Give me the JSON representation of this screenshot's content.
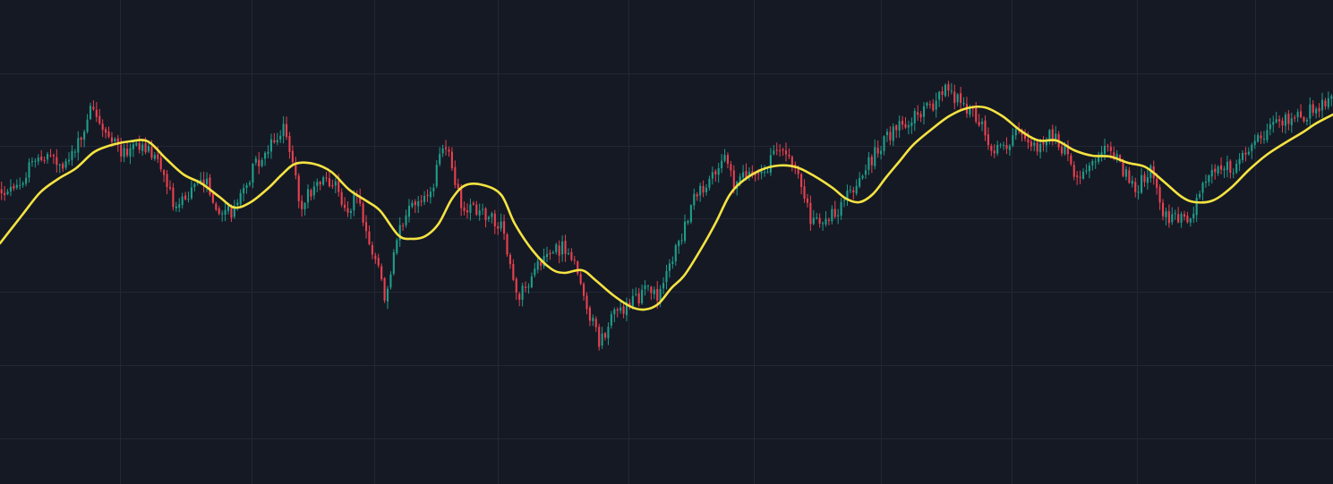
{
  "colors": {
    "background": "#151924",
    "grid": "#232733",
    "candle_up": "#1f9c8a",
    "candle_down": "#e8414f",
    "moving_average": "#f5e342"
  },
  "chart_data": {
    "type": "candlestick",
    "title": "",
    "xlabel": "",
    "ylabel": "",
    "grid": true,
    "legend": "none",
    "candle_count": 435,
    "ylim": [
      0,
      541
    ],
    "series": [
      {
        "kind": "candles",
        "anchors": [
          [
            0,
            213
          ],
          [
            15,
            215
          ],
          [
            30,
            190
          ],
          [
            50,
            172
          ],
          [
            70,
            185
          ],
          [
            95,
            150
          ],
          [
            100,
            120
          ],
          [
            120,
            150
          ],
          [
            135,
            170
          ],
          [
            160,
            160
          ],
          [
            175,
            175
          ],
          [
            195,
            230
          ],
          [
            215,
            212
          ],
          [
            230,
            200
          ],
          [
            245,
            240
          ],
          [
            260,
            235
          ],
          [
            285,
            185
          ],
          [
            310,
            150
          ],
          [
            318,
            140
          ],
          [
            325,
            170
          ],
          [
            335,
            232
          ],
          [
            355,
            200
          ],
          [
            375,
            208
          ],
          [
            385,
            240
          ],
          [
            400,
            215
          ],
          [
            415,
            285
          ],
          [
            425,
            300
          ],
          [
            430,
            340
          ],
          [
            445,
            260
          ],
          [
            460,
            225
          ],
          [
            480,
            222
          ],
          [
            495,
            162
          ],
          [
            505,
            185
          ],
          [
            515,
            230
          ],
          [
            535,
            238
          ],
          [
            560,
            250
          ],
          [
            570,
            300
          ],
          [
            580,
            330
          ],
          [
            600,
            300
          ],
          [
            620,
            280
          ],
          [
            630,
            275
          ],
          [
            640,
            290
          ],
          [
            660,
            355
          ],
          [
            670,
            385
          ],
          [
            685,
            350
          ],
          [
            700,
            345
          ],
          [
            710,
            335
          ],
          [
            725,
            320
          ],
          [
            735,
            330
          ],
          [
            745,
            300
          ],
          [
            760,
            270
          ],
          [
            775,
            225
          ],
          [
            795,
            195
          ],
          [
            810,
            168
          ],
          [
            820,
            210
          ],
          [
            835,
            195
          ],
          [
            855,
            190
          ],
          [
            875,
            160
          ],
          [
            885,
            190
          ],
          [
            895,
            205
          ],
          [
            905,
            245
          ],
          [
            915,
            250
          ],
          [
            935,
            235
          ],
          [
            945,
            220
          ],
          [
            960,
            200
          ],
          [
            985,
            160
          ],
          [
            1000,
            145
          ],
          [
            1020,
            130
          ],
          [
            1040,
            120
          ],
          [
            1055,
            98
          ],
          [
            1075,
            115
          ],
          [
            1095,
            135
          ],
          [
            1110,
            170
          ],
          [
            1135,
            150
          ],
          [
            1160,
            165
          ],
          [
            1175,
            150
          ],
          [
            1195,
            175
          ],
          [
            1200,
            205
          ],
          [
            1215,
            180
          ],
          [
            1240,
            160
          ],
          [
            1250,
            185
          ],
          [
            1270,
            210
          ],
          [
            1285,
            190
          ],
          [
            1300,
            240
          ],
          [
            1315,
            245
          ],
          [
            1330,
            240
          ],
          [
            1345,
            200
          ],
          [
            1360,
            182
          ],
          [
            1380,
            190
          ],
          [
            1400,
            160
          ],
          [
            1420,
            140
          ],
          [
            1435,
            135
          ],
          [
            1455,
            130
          ],
          [
            1470,
            118
          ],
          [
            1489,
            112
          ]
        ]
      },
      {
        "kind": "moving_average",
        "anchors": [
          [
            0,
            272
          ],
          [
            25,
            240
          ],
          [
            45,
            215
          ],
          [
            65,
            200
          ],
          [
            85,
            188
          ],
          [
            105,
            170
          ],
          [
            125,
            162
          ],
          [
            145,
            158
          ],
          [
            165,
            158
          ],
          [
            185,
            177
          ],
          [
            205,
            195
          ],
          [
            225,
            205
          ],
          [
            245,
            220
          ],
          [
            262,
            232
          ],
          [
            280,
            226
          ],
          [
            300,
            210
          ],
          [
            315,
            195
          ],
          [
            330,
            183
          ],
          [
            350,
            183
          ],
          [
            370,
            192
          ],
          [
            390,
            212
          ],
          [
            410,
            225
          ],
          [
            425,
            236
          ],
          [
            445,
            263
          ],
          [
            460,
            267
          ],
          [
            475,
            264
          ],
          [
            490,
            250
          ],
          [
            505,
            222
          ],
          [
            520,
            207
          ],
          [
            540,
            207
          ],
          [
            560,
            218
          ],
          [
            575,
            250
          ],
          [
            595,
            280
          ],
          [
            615,
            300
          ],
          [
            630,
            305
          ],
          [
            650,
            302
          ],
          [
            665,
            313
          ],
          [
            685,
            330
          ],
          [
            705,
            343
          ],
          [
            720,
            346
          ],
          [
            735,
            340
          ],
          [
            750,
            322
          ],
          [
            765,
            307
          ],
          [
            785,
            275
          ],
          [
            800,
            248
          ],
          [
            815,
            218
          ],
          [
            830,
            202
          ],
          [
            850,
            190
          ],
          [
            870,
            185
          ],
          [
            890,
            187
          ],
          [
            910,
            197
          ],
          [
            930,
            210
          ],
          [
            945,
            222
          ],
          [
            960,
            226
          ],
          [
            975,
            217
          ],
          [
            990,
            198
          ],
          [
            1005,
            180
          ],
          [
            1020,
            162
          ],
          [
            1040,
            145
          ],
          [
            1060,
            130
          ],
          [
            1080,
            121
          ],
          [
            1100,
            120
          ],
          [
            1120,
            130
          ],
          [
            1140,
            146
          ],
          [
            1160,
            157
          ],
          [
            1180,
            157
          ],
          [
            1200,
            168
          ],
          [
            1220,
            174
          ],
          [
            1240,
            175
          ],
          [
            1260,
            182
          ],
          [
            1280,
            187
          ],
          [
            1300,
            203
          ],
          [
            1320,
            220
          ],
          [
            1335,
            226
          ],
          [
            1355,
            224
          ],
          [
            1375,
            210
          ],
          [
            1395,
            190
          ],
          [
            1415,
            173
          ],
          [
            1435,
            160
          ],
          [
            1455,
            148
          ],
          [
            1470,
            138
          ],
          [
            1489,
            128
          ]
        ]
      }
    ],
    "gridlines": {
      "horizontal": [
        82,
        163,
        244,
        326,
        408,
        490
      ],
      "vertical": [
        134,
        281,
        418,
        556,
        702,
        842,
        984,
        1130,
        1270,
        1402
      ]
    }
  }
}
